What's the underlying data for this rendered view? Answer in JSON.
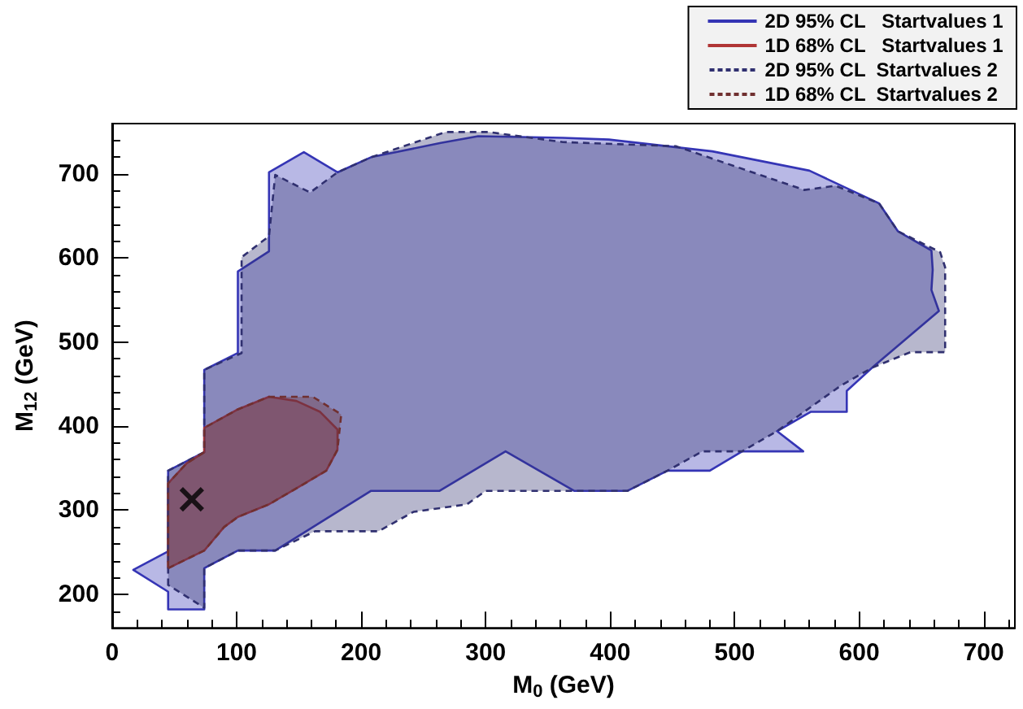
{
  "chart_data": {
    "type": "area",
    "xlabel": "M$_{0}$ (GeV)",
    "ylabel": "M$_{12}$ (GeV)",
    "xlim": [
      0,
      725
    ],
    "ylim": [
      160,
      760
    ],
    "xticks": [
      0,
      100,
      200,
      300,
      400,
      500,
      600,
      700
    ],
    "yticks": [
      200,
      300,
      400,
      500,
      600,
      700
    ],
    "grid": false,
    "legend": "top right",
    "series": [
      {
        "name": "2D 95% CL   Startvalues 1",
        "color": "#3535b5",
        "line_style": "solid",
        "x": [
          17,
          45,
          45,
          74,
          74,
          101,
          101,
          126,
          126,
          154,
          181,
          208,
          264,
          294,
          362,
          399,
          482,
          560,
          616,
          631,
          658,
          659,
          658,
          664,
          613,
          590,
          590,
          561,
          534,
          555,
          506,
          480,
          446,
          414,
          371,
          316,
          263,
          208,
          131,
          101,
          74,
          74,
          45,
          45
        ],
        "values": [
          229,
          251,
          347,
          369,
          467,
          487,
          584,
          608,
          702,
          726,
          702,
          720,
          737,
          745,
          743,
          741,
          727,
          704,
          665,
          632,
          609,
          586,
          562,
          537,
          473,
          442,
          417,
          417,
          394,
          370,
          370,
          347,
          347,
          323,
          323,
          370,
          323,
          323,
          252,
          252,
          231,
          182,
          182,
          203
        ]
      },
      {
        "name": "1D 68% CL   Startvalues 1",
        "color": "#b03535",
        "line_style": "solid",
        "x": [
          45,
          74,
          90,
          101,
          126,
          148,
          172,
          181,
          181,
          167,
          148,
          126,
          101,
          74,
          74,
          60,
          45
        ],
        "values": [
          231,
          252,
          280,
          292,
          307,
          326,
          347,
          372,
          396,
          417,
          430,
          435,
          420,
          398,
          369,
          356,
          332
        ]
      },
      {
        "name": "2D 95% CL  Startvalues 2",
        "color": "#303070",
        "line_style": "dashed",
        "x": [
          45,
          45,
          74,
          74,
          104,
          104,
          126,
          131,
          159,
          181,
          208,
          268,
          302,
          362,
          453,
          556,
          581,
          616,
          631,
          665,
          669,
          669,
          641,
          611,
          585,
          534,
          506,
          474,
          446,
          414,
          362,
          300,
          285,
          242,
          214,
          163,
          131,
          101,
          74,
          74
        ],
        "values": [
          211,
          347,
          369,
          467,
          487,
          601,
          626,
          699,
          678,
          702,
          720,
          750,
          750,
          738,
          733,
          681,
          686,
          665,
          632,
          607,
          589,
          488,
          488,
          470,
          448,
          394,
          370,
          370,
          347,
          323,
          323,
          323,
          307,
          298,
          275,
          275,
          252,
          252,
          231,
          184
        ]
      },
      {
        "name": "1D 68% CL  Startvalues 2",
        "color": "#703030",
        "line_style": "dashed",
        "x": [
          45,
          74,
          90,
          101,
          126,
          148,
          172,
          181,
          184,
          161,
          126,
          101,
          74,
          74,
          60,
          45
        ],
        "values": [
          231,
          252,
          280,
          292,
          307,
          326,
          347,
          372,
          414,
          435,
          435,
          420,
          398,
          369,
          356,
          332
        ]
      },
      {
        "type": "scatter",
        "marker": "cross",
        "color": "#000000",
        "x": [
          64
        ],
        "values": [
          313
        ]
      }
    ]
  }
}
